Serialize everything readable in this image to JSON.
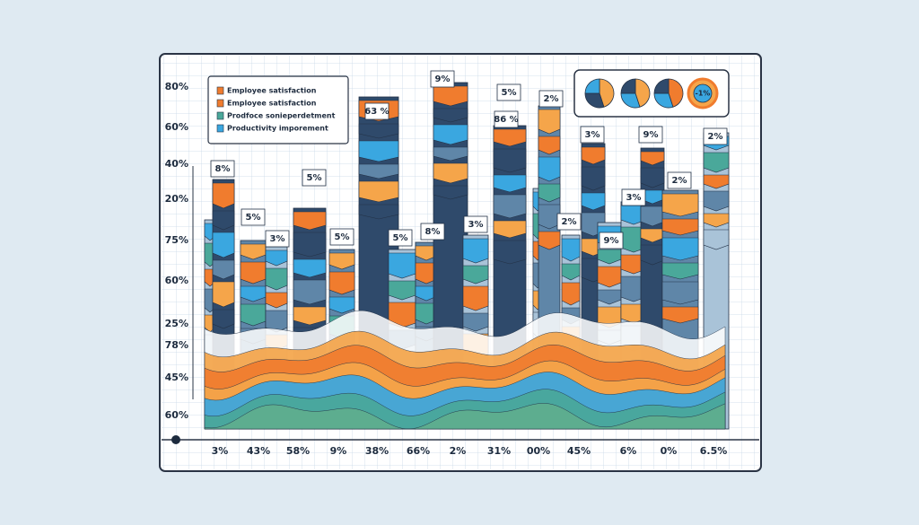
{
  "y_labels": [
    "80%",
    "60%",
    "40%",
    "20%",
    "75%",
    "60%",
    "25%",
    "78%",
    "45%",
    "60%"
  ],
  "x_labels": [
    "3%",
    "43%",
    "58%",
    "9%",
    "38%",
    "66%",
    "2%",
    "31%",
    "00%",
    "45%",
    "6%",
    "0%",
    "6.5%"
  ],
  "legend": [
    "Employee satisfaction",
    "Employee satisfaction",
    "Prodfoce sonieperdetment",
    "Productivity imporement"
  ],
  "bar_labels": [
    "8%",
    "5%",
    "3%",
    "5%",
    "5%",
    "63 %",
    "5%",
    "9%",
    "8%",
    "3%",
    "5%",
    "86 %",
    "2%",
    "3%",
    "2%",
    "9%",
    "3%",
    "9%",
    "2%",
    "2%"
  ],
  "pie_labels": [
    "-1%"
  ]
}
